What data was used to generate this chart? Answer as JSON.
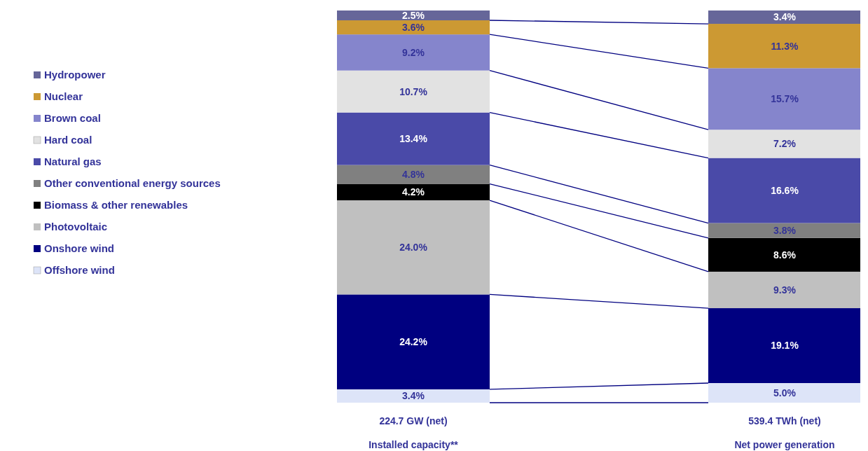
{
  "chart_data": {
    "type": "bar",
    "stacked": true,
    "categories": [
      "224.7 GW (net)\nInstalled capacity**",
      "539.4 TWh (net)\nNet power generation"
    ],
    "ylim": [
      0,
      100
    ],
    "tick_labels": "x",
    "legend": "left",
    "series": [
      {
        "name": "Offshore wind",
        "color": "#dde4f8",
        "values": [
          3.4,
          5.0
        ],
        "value_labels": [
          "3.4%",
          "5.0%"
        ]
      },
      {
        "name": "Onshore wind",
        "color": "#000080",
        "values": [
          24.2,
          19.1
        ],
        "value_labels": [
          "24.2%",
          "19.1%"
        ]
      },
      {
        "name": "Photovoltaic",
        "color": "#c0c0c0",
        "values": [
          24.0,
          9.3
        ],
        "value_labels": [
          "24.0%",
          "9.3%"
        ]
      },
      {
        "name": "Biomass & other renewables",
        "color": "#000000",
        "values": [
          4.2,
          8.6
        ],
        "value_labels": [
          "4.2%",
          "8.6%"
        ]
      },
      {
        "name": "Other conventional energy sources",
        "color": "#808080",
        "values": [
          4.8,
          3.8
        ],
        "value_labels": [
          "4.8%",
          "3.8%"
        ]
      },
      {
        "name": "Natural gas",
        "color": "#4a4aa8",
        "values": [
          13.4,
          16.6
        ],
        "value_labels": [
          "13.4%",
          "16.6%"
        ]
      },
      {
        "name": "Hard coal",
        "color": "#e2e2e2",
        "values": [
          10.7,
          7.2
        ],
        "value_labels": [
          "10.7%",
          "7.2%"
        ]
      },
      {
        "name": "Brown coal",
        "color": "#8585cc",
        "values": [
          9.2,
          15.7
        ],
        "value_labels": [
          "9.2%",
          "15.7%"
        ]
      },
      {
        "name": "Nuclear",
        "color": "#cc9933",
        "values": [
          3.6,
          11.3
        ],
        "value_labels": [
          "3.6%",
          "11.3%"
        ]
      },
      {
        "name": "Hydropower",
        "color": "#666699",
        "values": [
          2.5,
          3.4
        ],
        "value_labels": [
          "2.5%",
          "3.4%"
        ]
      }
    ]
  }
}
